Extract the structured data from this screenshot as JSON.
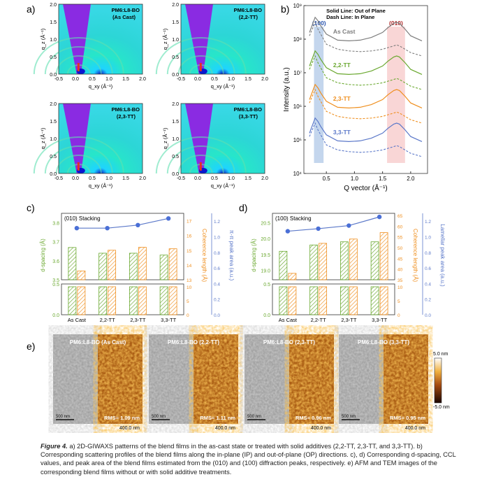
{
  "panel_letters": [
    "a)",
    "b)",
    "c)",
    "d)",
    "e)"
  ],
  "giwaxs": {
    "labels": [
      [
        "PM6:L8-BO",
        "(As Cast)"
      ],
      [
        "PM6:L8-BO",
        "(2,2-TT)"
      ],
      [
        "PM6:L8-BO",
        "(2,3-TT)"
      ],
      [
        "PM6:L8-BO",
        "(3,3-TT)"
      ]
    ],
    "xlabel": "q_xy (Å⁻¹)",
    "ylabel": "q_z (Å⁻¹)",
    "xticks": [
      "-0.5",
      "0.0",
      "0.5",
      "1.0",
      "1.5",
      "2.0"
    ],
    "yticks": [
      "0.0",
      "0.5",
      "1.0",
      "1.5",
      "2.0"
    ]
  },
  "afm_tem": {
    "labels": [
      "PM6:L8-BO (As Cast)",
      "PM6:L8-BO (2,2-TT)",
      "PM6:L8-BO (2,3-TT)",
      "PM6:L8-BO (3,3-TT)"
    ],
    "rms": [
      "RMS= 1.09 nm",
      "RMS= 1.11 nm",
      "RMS= 0.96 nm",
      "RMS= 0.95 nm"
    ],
    "tem_scale": "500 nm",
    "afm_scale": "400.0 nm",
    "colorbar": [
      "5.0 nm",
      "-5.0 nm"
    ]
  },
  "caption": {
    "label": "Figure 4.",
    "text": " a) 2D-GIWAXS patterns of the blend films in the as-cast state or treated with solid additives (2,2-TT, 2,3-TT, and 3,3-TT). b) Corresponding scattering profiles of the blend films along the in-plane (IP) and out-of-plane (OP) directions. c), d) Corresponding d-spacing, CCL values, and peak area of the blend films estimated from the (010) and (100) diffraction peaks, respectively. e) AFM and TEM images of the corresponding blend films without or with solid additive treatments."
  },
  "chart_data": [
    {
      "type": "line",
      "panel": "b",
      "xlabel": "Q vector (Å⁻¹)",
      "ylabel": "Intensity (a.u.)",
      "xlim": [
        0.1,
        2.3
      ],
      "ylim_log10": [
        4,
        9
      ],
      "yscale": "log",
      "xticks": [
        "0.5",
        "1.0",
        "1.5",
        "2.0"
      ],
      "yticks": [
        "10⁴",
        "10⁵",
        "10⁶",
        "10⁷",
        "10⁸",
        "10⁹"
      ],
      "legend": [
        "Solid Line: Out of Plane",
        "Dash Line: In Plane"
      ],
      "peak_labels": [
        "(100)",
        "(010)"
      ],
      "x": [
        0.2,
        0.3,
        0.35,
        0.4,
        0.5,
        0.7,
        0.9,
        1.1,
        1.3,
        1.5,
        1.6,
        1.7,
        1.75,
        1.8,
        1.9,
        2.0,
        2.2
      ],
      "series": [
        {
          "name": "As Cast",
          "color": "#7d7d7d",
          "offset": 3.75
        },
        {
          "name": "2,2-TT",
          "color": "#6aa82f",
          "offset": 2.75
        },
        {
          "name": "2,3-TT",
          "color": "#ef8f1f",
          "offset": 1.75
        },
        {
          "name": "3,3-TT",
          "color": "#5b78c9",
          "offset": 0.75
        }
      ],
      "op_profile_log10_rel": [
        0.45,
        0.9,
        0.8,
        0.65,
        0.4,
        0.22,
        0.2,
        0.22,
        0.3,
        0.45,
        0.6,
        0.72,
        0.75,
        0.72,
        0.55,
        0.35,
        0.2
      ],
      "ip_profile_log10_rel": [
        0.35,
        0.75,
        0.55,
        0.4,
        0.1,
        -0.05,
        -0.1,
        -0.12,
        -0.1,
        -0.05,
        0.0,
        0.05,
        0.08,
        0.05,
        -0.05,
        -0.15,
        -0.25
      ]
    },
    {
      "type": "bar",
      "panel": "c",
      "annotation": "(010) Stacking",
      "categories": [
        "As Cast",
        "2,2-TT",
        "2,3-TT",
        "3,3-TT"
      ],
      "ylabel": "d-spacing (Å)",
      "ylabel2": "Coherence length (Å)",
      "ylabel3": "π-π peak area (a.u.)",
      "yticks": [
        "0.0",
        "0.5",
        "3.5",
        "3.6",
        "3.7",
        "3.8"
      ],
      "y2ticks": [
        "0",
        "5",
        "10",
        "13",
        "14",
        "15",
        "16",
        "17"
      ],
      "y3ticks": [
        "0.0",
        "0.2",
        "0.4",
        "0.6",
        "0.8",
        "1.0",
        "1.2"
      ],
      "series": [
        {
          "name": "d-spacing",
          "color": "#6aa82f",
          "values": [
            3.67,
            3.64,
            3.64,
            3.63
          ]
        },
        {
          "name": "coherence length",
          "color": "#ef8f1f",
          "values": [
            13.6,
            15.0,
            15.2,
            15.1
          ]
        },
        {
          "name": "peak area",
          "color": "#5b78c9",
          "values": [
            1.01,
            1.01,
            1.07,
            1.2
          ]
        }
      ]
    },
    {
      "type": "bar",
      "panel": "d",
      "annotation": "(100) Stacking",
      "categories": [
        "As Cast",
        "2,2-TT",
        "2,3-TT",
        "3,3-TT"
      ],
      "ylabel": "d-spacing (Å)",
      "ylabel2": "Coherence length (Å)",
      "ylabel3": "Lamellar peak area (a.u.)",
      "yticks": [
        "0.0",
        "0.5",
        "19.0",
        "19.5",
        "20.0",
        "20.5"
      ],
      "y2ticks": [
        "0",
        "5",
        "10",
        "35",
        "40",
        "45",
        "50",
        "55",
        "60",
        "65"
      ],
      "y3ticks": [
        "0.0",
        "0.2",
        "0.4",
        "0.6",
        "0.8",
        "1.0",
        "1.2"
      ],
      "series": [
        {
          "name": "d-spacing",
          "color": "#6aa82f",
          "values": [
            19.6,
            19.8,
            19.9,
            19.9
          ]
        },
        {
          "name": "coherence length",
          "color": "#ef8f1f",
          "values": [
            38,
            52,
            54,
            57
          ]
        },
        {
          "name": "peak area",
          "color": "#5b78c9",
          "values": [
            0.95,
            1.0,
            1.06,
            1.23
          ]
        }
      ]
    }
  ]
}
